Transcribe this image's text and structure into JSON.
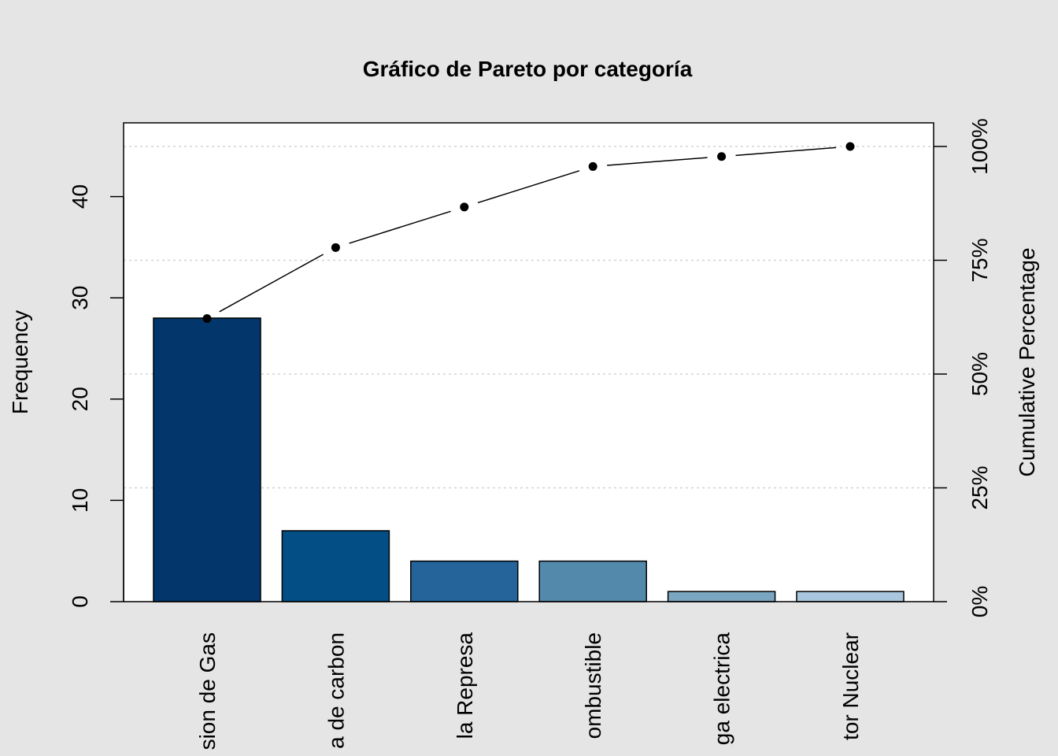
{
  "chart_data": {
    "type": "bar",
    "title": "Gráfico de Pareto por categoría",
    "ylabel": "Frequency",
    "ylabel_right": "Cumulative Percentage",
    "categories": [
      "sion de Gas",
      "a de carbon",
      "la Represa",
      "ombustible",
      "ga electrica",
      "tor Nuclear"
    ],
    "values": [
      28,
      7,
      4,
      4,
      1,
      1
    ],
    "cumulative_percent": [
      62.2,
      77.8,
      86.7,
      95.6,
      97.8,
      100
    ],
    "ylim": [
      0,
      45
    ],
    "yticks": [
      0,
      10,
      20,
      30,
      40
    ],
    "ytick_labels": [
      "0",
      "10",
      "20",
      "30",
      "40"
    ],
    "y2ticks": [
      0,
      25,
      50,
      75,
      100
    ],
    "y2tick_labels": [
      "0%",
      "25%",
      "50%",
      "75%",
      "100%"
    ],
    "bar_colors": [
      "#03366a",
      "#034e85",
      "#24649a",
      "#5389ab",
      "#7aa6c2",
      "#a8c6de"
    ],
    "grid": true,
    "background_color": "#e5e5e5"
  }
}
